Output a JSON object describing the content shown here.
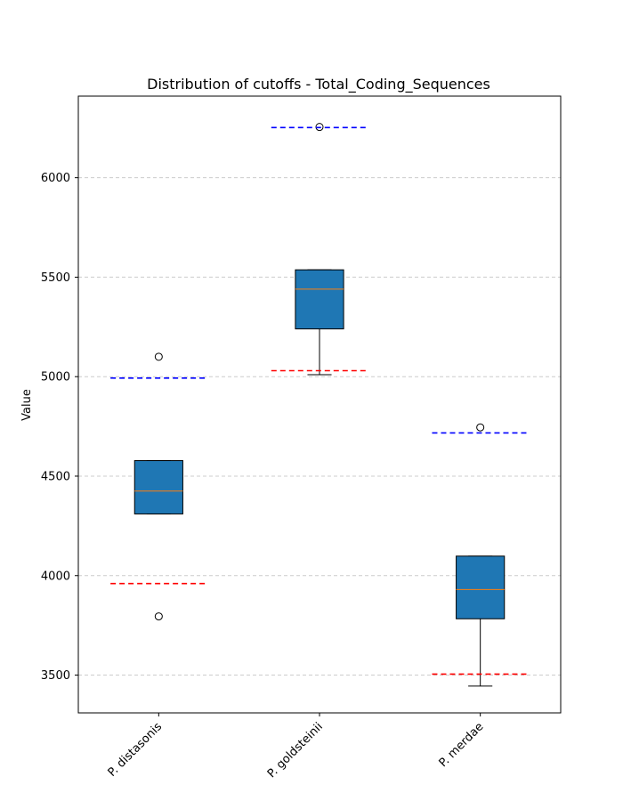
{
  "chart_data": {
    "type": "box",
    "title": "Distribution of cutoffs - Total_Coding_Sequences",
    "xlabel": "",
    "ylabel": "Value",
    "ylim": [
      3310,
      6410
    ],
    "yticks": [
      3500,
      4000,
      4500,
      5000,
      5500,
      6000
    ],
    "grid": "y-dashed",
    "colors": {
      "box_fill": "#1f77b4",
      "median": "#ff7f0e",
      "lower_cutoff": "#ff0000",
      "upper_cutoff": "#0000ff",
      "grid": "#cccccc"
    },
    "categories": [
      "P. distasonis",
      "P. goldsteinii",
      "P. merdae"
    ],
    "boxes": [
      {
        "category": "P. distasonis",
        "whisker_low": 4310,
        "q1": 4310,
        "median": 4425,
        "q3": 4578,
        "whisker_high": 4578,
        "outliers": [
          3795,
          5100
        ],
        "lower_cutoff": 3960,
        "upper_cutoff": 4993
      },
      {
        "category": "P. goldsteinii",
        "whisker_low": 5010,
        "q1": 5240,
        "median": 5440,
        "q3": 5537,
        "whisker_high": 5537,
        "outliers": [
          6255
        ],
        "lower_cutoff": 5030,
        "upper_cutoff": 6252
      },
      {
        "category": "P. merdae",
        "whisker_low": 3445,
        "q1": 3783,
        "median": 3930,
        "q3": 4098,
        "whisker_high": 4098,
        "outliers": [
          4745
        ],
        "lower_cutoff": 3505,
        "upper_cutoff": 4717
      }
    ]
  }
}
